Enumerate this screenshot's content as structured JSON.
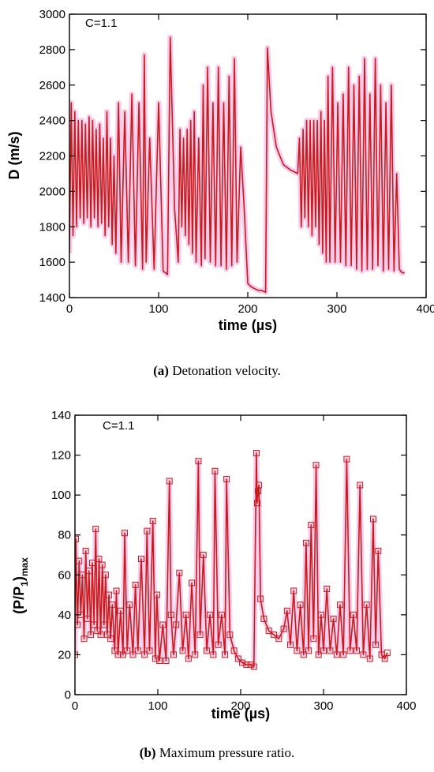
{
  "chart_data": [
    {
      "type": "line",
      "annotation": "C=1.1",
      "xlabel": "time (µs)",
      "ylabel": "D (m/s)",
      "xlim": [
        0,
        400
      ],
      "ylim": [
        1400,
        3000
      ],
      "xticks": [
        0,
        100,
        200,
        300,
        400
      ],
      "yticks": [
        1400,
        1600,
        1800,
        2000,
        2200,
        2400,
        2600,
        2800,
        3000
      ],
      "line_color": "#cc1a1a",
      "halo_color": "#f2b8e6",
      "series": [
        {
          "x": [
            0,
            2,
            4,
            6,
            8,
            10,
            12,
            14,
            16,
            18,
            20,
            22,
            24,
            26,
            28,
            30,
            32,
            34,
            36,
            38,
            40,
            42,
            44,
            46,
            48,
            50,
            52,
            55,
            58,
            62,
            66,
            70,
            74,
            78,
            82,
            84,
            86,
            90,
            95,
            100,
            105,
            110,
            113,
            118,
            122,
            124,
            126,
            128,
            130,
            132,
            134,
            136,
            138,
            140,
            142,
            145,
            148,
            150,
            152,
            155,
            158,
            161,
            164,
            167,
            170,
            173,
            176,
            179,
            182,
            185,
            188,
            192,
            196,
            200,
            204,
            208,
            212,
            216,
            220,
            222,
            226,
            232,
            240,
            248,
            256,
            258,
            260,
            262,
            264,
            266,
            268,
            270,
            272,
            274,
            276,
            278,
            280,
            282,
            284,
            286,
            288,
            290,
            292,
            295,
            298,
            301,
            304,
            307,
            310,
            313,
            316,
            319,
            322,
            325,
            328,
            331,
            334,
            337,
            340,
            343,
            346,
            349,
            352,
            355,
            358,
            361,
            364,
            367,
            370,
            373,
            376
          ],
          "y": [
            1650,
            2500,
            1750,
            2450,
            1800,
            2400,
            1850,
            2400,
            1820,
            2380,
            1850,
            2420,
            1800,
            2400,
            1850,
            2350,
            1800,
            2380,
            1820,
            2300,
            1750,
            2450,
            1800,
            2300,
            1700,
            2200,
            1650,
            2500,
            1600,
            2450,
            1600,
            2550,
            1580,
            2500,
            1560,
            2770,
            1600,
            2300,
            1560,
            2500,
            1550,
            1530,
            2870,
            1900,
            1600,
            2350,
            1800,
            2300,
            1750,
            2350,
            1700,
            2400,
            1650,
            2450,
            1600,
            2300,
            1580,
            2600,
            1620,
            2700,
            1600,
            2500,
            1580,
            2700,
            1580,
            2500,
            1560,
            2650,
            1580,
            2750,
            1600,
            2250,
            1900,
            1480,
            1460,
            1450,
            1440,
            1440,
            1430,
            2810,
            2450,
            2250,
            2150,
            2120,
            2100,
            2300,
            1800,
            2350,
            1850,
            2400,
            1800,
            2400,
            1750,
            2400,
            1800,
            2400,
            1700,
            2450,
            1650,
            2400,
            1600,
            2650,
            1600,
            2700,
            1600,
            2500,
            1600,
            2550,
            1580,
            2700,
            1580,
            2600,
            1560,
            2650,
            1550,
            2750,
            1560,
            2550,
            1560,
            2750,
            1580,
            2600,
            1550,
            2500,
            1560,
            2600,
            1550,
            2100,
            1560,
            1540,
            1540
          ]
        }
      ]
    },
    {
      "type": "line",
      "annotation": "C=1.1",
      "xlabel": "time (µs)",
      "ylabel_main": "(P/P",
      "ylabel_sub1": "1",
      "ylabel_mid": ")",
      "ylabel_sub2": "max",
      "xlim": [
        0,
        400
      ],
      "ylim": [
        0,
        140
      ],
      "xticks": [
        0,
        100,
        200,
        300,
        400
      ],
      "yticks": [
        0,
        20,
        40,
        60,
        80,
        100,
        120,
        140
      ],
      "line_color": "#cc1a1a",
      "halo_color": "#f2b8e6",
      "series": [
        {
          "x": [
            0,
            1,
            3,
            5,
            7,
            9,
            11,
            13,
            15,
            17,
            19,
            21,
            23,
            25,
            27,
            29,
            31,
            33,
            35,
            37,
            39,
            41,
            43,
            45,
            48,
            50,
            52,
            55,
            58,
            60,
            63,
            66,
            70,
            73,
            76,
            80,
            84,
            87,
            90,
            94,
            97,
            99,
            102,
            106,
            110,
            114,
            116,
            119,
            122,
            126,
            130,
            134,
            137,
            141,
            145,
            149,
            151,
            155,
            159,
            163,
            167,
            169,
            173,
            177,
            181,
            183,
            187,
            192,
            197,
            202,
            207,
            212,
            216,
            219,
            220,
            221,
            222,
            224,
            228,
            234,
            240,
            246,
            252,
            256,
            260,
            264,
            268,
            272,
            276,
            279,
            282,
            285,
            288,
            291,
            294,
            297,
            300,
            304,
            308,
            312,
            316,
            320,
            324,
            328,
            332,
            336,
            340,
            344,
            348,
            352,
            356,
            360,
            363,
            366,
            370,
            374,
            377
          ],
          "y": [
            20,
            78,
            35,
            67,
            40,
            60,
            28,
            72,
            38,
            62,
            30,
            66,
            35,
            83,
            32,
            68,
            30,
            65,
            35,
            60,
            30,
            50,
            28,
            45,
            22,
            52,
            20,
            42,
            20,
            81,
            22,
            45,
            20,
            55,
            22,
            68,
            20,
            82,
            22,
            87,
            18,
            50,
            17,
            35,
            17,
            107,
            40,
            20,
            35,
            61,
            22,
            40,
            18,
            56,
            20,
            117,
            30,
            70,
            22,
            40,
            20,
            112,
            25,
            40,
            20,
            108,
            30,
            22,
            18,
            16,
            15,
            15,
            14,
            121,
            96,
            102,
            105,
            48,
            38,
            32,
            30,
            28,
            33,
            42,
            25,
            52,
            22,
            45,
            20,
            76,
            22,
            85,
            28,
            115,
            20,
            40,
            22,
            53,
            22,
            38,
            20,
            45,
            20,
            118,
            22,
            40,
            22,
            105,
            20,
            45,
            18,
            88,
            25,
            72,
            20,
            18,
            21
          ]
        }
      ]
    }
  ],
  "captions": [
    {
      "label": "(a)",
      "text": " Detonation velocity."
    },
    {
      "label": "(b)",
      "text": " Maximum pressure ratio."
    }
  ]
}
